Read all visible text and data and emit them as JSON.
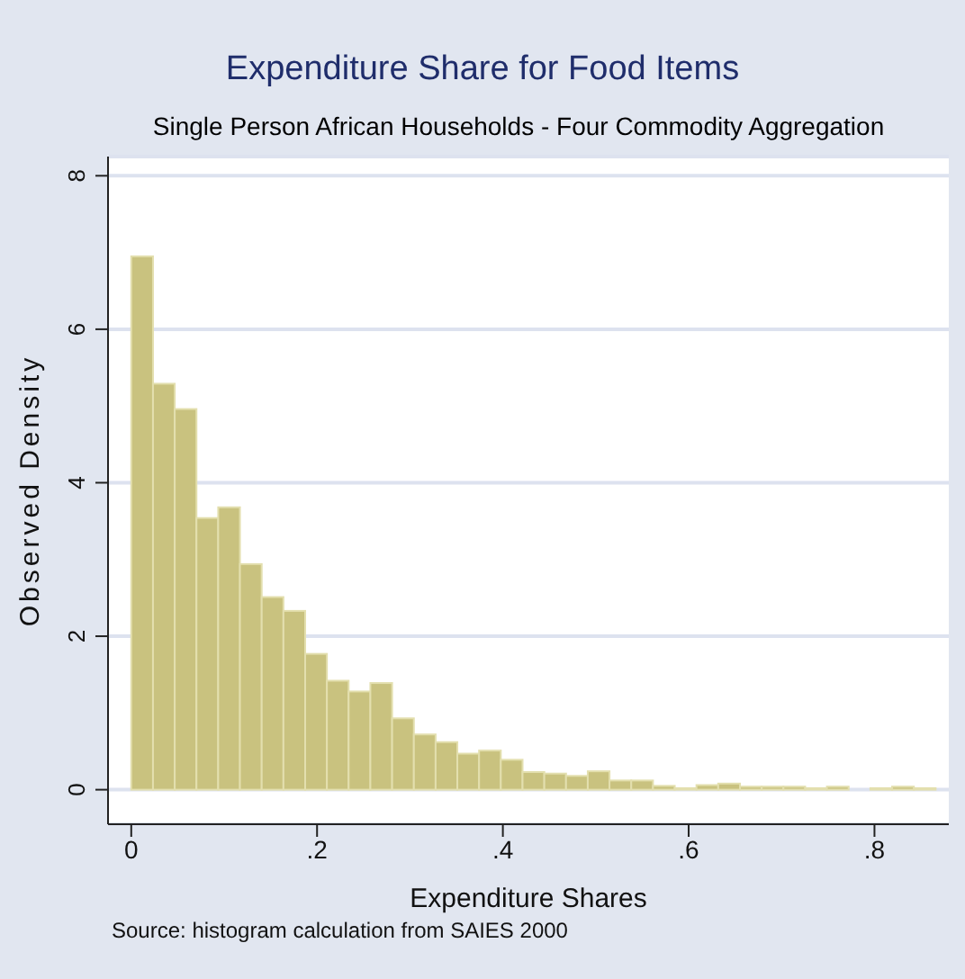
{
  "chart_data": {
    "type": "histogram",
    "title": "Expenditure Share for Food Items",
    "subtitle": "Single Person African Households - Four Commodity Aggregation",
    "xlabel": "Expenditure Shares",
    "ylabel": "Observed Density",
    "annotations": [
      "Source: histogram calculation from SAIES 2000"
    ],
    "bins": [
      0,
      0.0234,
      0.0468,
      0.0702,
      0.0936,
      0.117,
      0.1404,
      0.1638,
      0.1872,
      0.2106,
      0.234,
      0.2574,
      0.2808,
      0.3042,
      0.3276,
      0.351,
      0.3744,
      0.3978,
      0.4212,
      0.4446,
      0.468,
      0.4914,
      0.5148,
      0.5382,
      0.5616,
      0.585,
      0.6084,
      0.6318,
      0.6552,
      0.6786,
      0.702,
      0.7254,
      0.7488,
      0.7722,
      0.7956,
      0.819,
      0.8424,
      0.8658
    ],
    "values": [
      6.95,
      5.29,
      4.96,
      3.54,
      3.68,
      2.94,
      2.51,
      2.33,
      1.77,
      1.42,
      1.28,
      1.39,
      0.93,
      0.72,
      0.62,
      0.47,
      0.51,
      0.39,
      0.23,
      0.21,
      0.18,
      0.24,
      0.12,
      0.12,
      0.05,
      0.02,
      0.06,
      0.08,
      0.04,
      0.04,
      0.04,
      0.02,
      0.04,
      0,
      0.02,
      0.04,
      0.02
    ],
    "color": "#c9c27f",
    "xlim": [
      -0.025,
      0.88
    ],
    "ylim": [
      -0.45,
      8.25
    ],
    "xticks": [
      0,
      {
        "value": 0.2,
        "label": ".2"
      },
      {
        "value": 0.4,
        "label": ".4"
      },
      {
        "value": 0.6,
        "label": ".6"
      },
      {
        "value": 0.8,
        "label": ".8"
      }
    ],
    "yticks": [
      0,
      2,
      4,
      6,
      8
    ],
    "grid": "y"
  }
}
